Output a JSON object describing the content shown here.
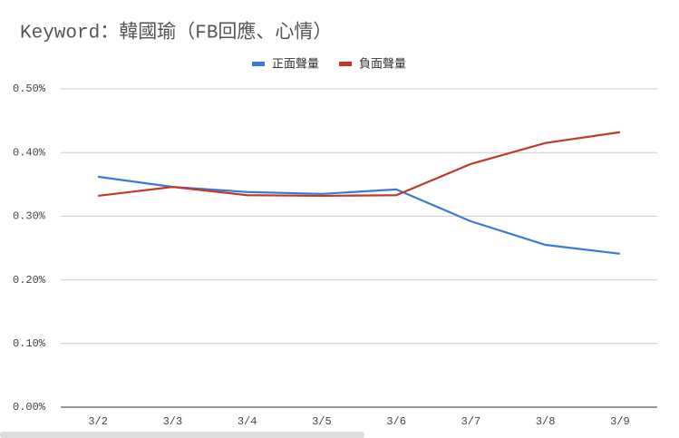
{
  "chart_data": {
    "type": "line",
    "title": "Keyword：韓國瑜（FB回應、心情）",
    "categories": [
      "3/2",
      "3/3",
      "3/4",
      "3/5",
      "3/6",
      "3/7",
      "3/8",
      "3/9"
    ],
    "series": [
      {
        "name": "正面聲量",
        "color": "#3c78d8",
        "values": [
          0.362,
          0.346,
          0.338,
          0.335,
          0.342,
          0.292,
          0.255,
          0.241
        ]
      },
      {
        "name": "負面聲量",
        "color": "#c0392b",
        "values": [
          0.332,
          0.346,
          0.333,
          0.332,
          0.333,
          0.382,
          0.415,
          0.432
        ]
      }
    ],
    "ylim": [
      0,
      0.5
    ],
    "yticks": [
      {
        "value": 0,
        "label": "0.00%"
      },
      {
        "value": 0.1,
        "label": "0.10%"
      },
      {
        "value": 0.2,
        "label": "0.20%"
      },
      {
        "value": 0.3,
        "label": "0.30%"
      },
      {
        "value": 0.4,
        "label": "0.40%"
      },
      {
        "value": 0.5,
        "label": "0.50%"
      }
    ],
    "grid": true,
    "legend": "top"
  }
}
